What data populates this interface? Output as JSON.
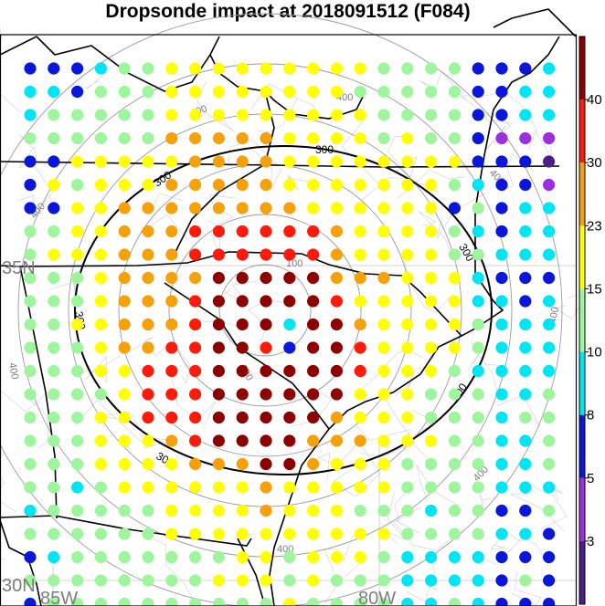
{
  "title": "Dropsonde impact at 2018091512 (F084)",
  "lat_labels": [
    "35N",
    "30N"
  ],
  "lon_labels": [
    "85W",
    "80W"
  ],
  "contour_labels": {
    "black": "300",
    "gray_outer": "400",
    "gray_inner": "100"
  },
  "colorbar": {
    "tick_labels": [
      "40",
      "30",
      "23",
      "15",
      "10",
      "8",
      "5",
      "3"
    ],
    "colors": [
      "#4b1f87",
      "#9b30e0",
      "#0a16d8",
      "#00e5f2",
      "#9ef59e",
      "#ffff00",
      "#f5a10c",
      "#ff1a0a",
      "#8c0000"
    ]
  },
  "palette": {
    "dkpurple": "#4b1f87",
    "purple": "#9b30e0",
    "blue": "#0a16d8",
    "cyan": "#00e5f2",
    "green": "#9ef59e",
    "yellow": "#ffff00",
    "orange": "#f5a10c",
    "red": "#ff1a0a",
    "darkred": "#8c0000"
  },
  "dot_grid_rows": [
    "BBBCGGYYYYYYYYYGGGGBBBC",
    "CCBGGGYYYYYYYYGGGGGBBCC",
    "CGGGGGYYYYYYYYYGGGGBBCC",
    "GGGGGGOOOOOYYYYGYGGBPPP",
    "BBYYYYYOOOOYYYYYYYYBBBD",
    "BYGYYYOOOOOYYYYYYYGCBBP",
    "BBYYOOOOOOOOYYYYYYBGBCC",
    "GGYYOOORRRRRROYYYYGCBCC",
    "GYYYOOORRRRRROYYYYGGCCC",
    "GGGYOOOODDDDDOOOYYYCBBB",
    "GGGYOOORDDDDDRYYYYYCCBC",
    "GGYYOOORDDDCDDOYYYYGCCC",
    "GGGYOORRDDRBDDRYYYYGCCC",
    "GGGYYRRRDDDDDDRYYYGCCCC",
    "GGGGYRRRDDDDDDYYYGGGCCG",
    "GGGYYRRRDDDDDOYYYGGGCGG",
    "GGGYYYORDDDDOOOYYYGGCCG",
    "GGGYYYYOOODDOYYYGGGGCCG",
    "GGCGYYYYYYOYYYYYGGGGCCC",
    "CGGGGGYYYYOYYYGGGCGGBBG",
    "GGGGGGYYYYYYYYYYGGGGCCB",
    "BCGGGGGGGYYGYYYGCCCCBBB",
    "GGGGGGGGYYYGYGGGCCCCBGB",
    "BGGGGGGGGGGYGGGGCCGCBBB"
  ]
}
